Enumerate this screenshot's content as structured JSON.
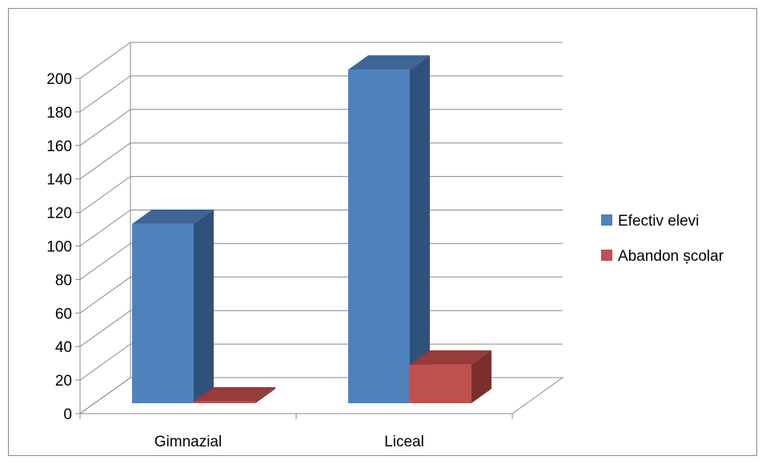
{
  "chart_data": {
    "type": "bar",
    "title": "",
    "xlabel": "",
    "ylabel": "",
    "categories": [
      "Gimnazial",
      "Liceal"
    ],
    "series": [
      {
        "name": "Efectiv elevi",
        "values": [
          107,
          199
        ]
      },
      {
        "name": "Abandon școlar",
        "values": [
          1,
          23
        ]
      }
    ],
    "ylim": [
      0,
      200
    ],
    "yticks": [
      0,
      20,
      40,
      60,
      80,
      100,
      120,
      140,
      160,
      180,
      200
    ],
    "grid": true,
    "legend_position": "right",
    "colors": {
      "Efectiv elevi": {
        "front": "#4F81BD",
        "side": "#2E527C",
        "top": "#3E6596"
      },
      "Abandon școlar": {
        "front": "#C0504D",
        "side": "#7A2F2D",
        "top": "#963C3A"
      },
      "grid": "#888888",
      "border": "#888888"
    }
  }
}
